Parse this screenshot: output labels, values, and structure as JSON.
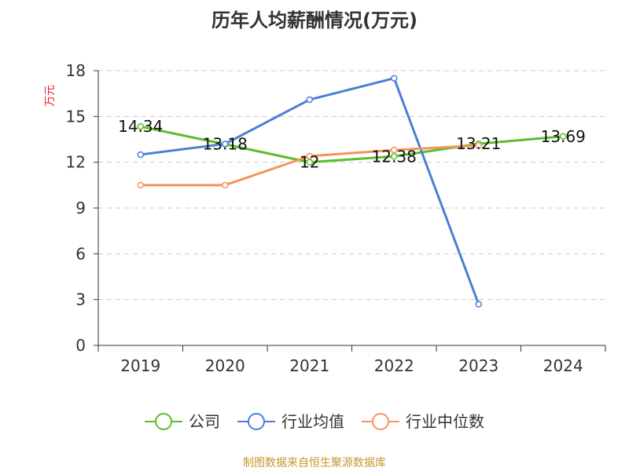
{
  "colors": {
    "company": "#5bbd2b",
    "industry_avg": "#4a7fd6",
    "industry_median": "#f5945a",
    "title": "#333333",
    "unit": "#e8222a",
    "source": "#c8962e",
    "grid": "#cccccc",
    "axis": "#333333"
  },
  "chart_data": {
    "type": "line",
    "title": "历年人均薪酬情况(万元)",
    "ylabel": "万元",
    "xlabel": "",
    "categories": [
      "2019",
      "2020",
      "2021",
      "2022",
      "2023",
      "2024"
    ],
    "ylim": [
      0,
      18
    ],
    "yticks": [
      0,
      3,
      6,
      9,
      12,
      15,
      18
    ],
    "grid": true,
    "legend_position": "bottom",
    "series": [
      {
        "name": "公司",
        "color_key": "company",
        "values": [
          14.34,
          13.18,
          12,
          12.38,
          13.21,
          13.69
        ],
        "labels": [
          "14.34",
          "13.18",
          "12",
          "12.38",
          "13.21",
          "13.69"
        ]
      },
      {
        "name": "行业均值",
        "color_key": "industry_avg",
        "values": [
          12.5,
          13.2,
          16.1,
          17.5,
          2.7,
          null
        ]
      },
      {
        "name": "行业中位数",
        "color_key": "industry_median",
        "values": [
          10.5,
          10.5,
          12.4,
          12.8,
          13.1,
          null
        ]
      }
    ]
  },
  "source": "制图数据来自恒生聚源数据库"
}
